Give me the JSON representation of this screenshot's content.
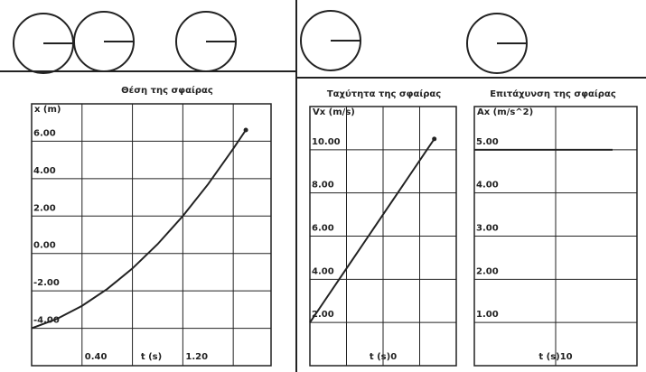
{
  "chart_data": [
    {
      "type": "line",
      "title": "Θέση της σφαίρας",
      "ylabel": "x (m)",
      "xlabel": "t (s)",
      "xlim": [
        0,
        1.9
      ],
      "ylim": [
        -6,
        8
      ],
      "xticks": [
        {
          "value": 0.4,
          "label": "0.40"
        },
        {
          "value": 0.8,
          "label": null
        },
        {
          "value": 1.2,
          "label": "1.20"
        },
        {
          "value": 1.6,
          "label": null
        }
      ],
      "yticks": [
        {
          "value": -4,
          "label": "-4.00"
        },
        {
          "value": -2,
          "label": "-2.00"
        },
        {
          "value": 0,
          "label": "0.00"
        },
        {
          "value": 2,
          "label": "2.00"
        },
        {
          "value": 4,
          "label": "4.00"
        },
        {
          "value": 6,
          "label": "6.00"
        }
      ],
      "grid": true,
      "end_marker": true,
      "x": [
        0,
        0.2,
        0.4,
        0.6,
        0.8,
        1.0,
        1.2,
        1.4,
        1.6,
        1.7
      ],
      "series": [
        {
          "color": "#222222",
          "values": [
            -4,
            -3.5,
            -2.8,
            -1.9,
            -0.8,
            0.5,
            2.0,
            3.7,
            5.6,
            6.6
          ]
        }
      ]
    },
    {
      "type": "line",
      "title": "Ταχύτητα της σφαίρας",
      "ylabel": "Vx (m/s)",
      "xlabel": "t (s)0",
      "xlim": [
        0,
        2.0
      ],
      "ylim": [
        0,
        12
      ],
      "xticks": [
        {
          "value": 0.5,
          "label": null
        },
        {
          "value": 1.0,
          "label": null
        },
        {
          "value": 1.5,
          "label": null
        }
      ],
      "yticks": [
        {
          "value": 2,
          "label": "2.00"
        },
        {
          "value": 4,
          "label": "4.00"
        },
        {
          "value": 6,
          "label": "6.00"
        },
        {
          "value": 8,
          "label": "8.00"
        },
        {
          "value": 10,
          "label": "10.00"
        }
      ],
      "grid": true,
      "end_marker": true,
      "x": [
        0,
        0.2,
        0.4,
        0.6,
        0.8,
        1.0,
        1.2,
        1.4,
        1.6,
        1.7
      ],
      "series": [
        {
          "color": "#222222",
          "values": [
            2,
            3,
            4,
            5,
            6,
            7,
            8,
            9,
            10,
            10.5
          ]
        }
      ]
    },
    {
      "type": "line",
      "title": "Επιτάχυνση της σφαίρας",
      "ylabel": "Ax (m/s^2)",
      "xlabel": "t (s)10",
      "xlim": [
        0,
        2.0
      ],
      "ylim": [
        0,
        6
      ],
      "xticks": [
        {
          "value": 1.0,
          "label": null
        }
      ],
      "yticks": [
        {
          "value": 1,
          "label": "1.00"
        },
        {
          "value": 2,
          "label": "2.00"
        },
        {
          "value": 3,
          "label": "3.00"
        },
        {
          "value": 4,
          "label": "4.00"
        },
        {
          "value": 5,
          "label": "5.00"
        }
      ],
      "grid": true,
      "end_marker": false,
      "x": [
        0,
        0.2,
        0.4,
        0.6,
        0.8,
        1.0,
        1.2,
        1.4,
        1.6,
        1.7
      ],
      "series": [
        {
          "color": "#222222",
          "values": [
            5,
            5,
            5,
            5,
            5,
            5,
            5,
            5,
            5,
            5
          ]
        }
      ]
    }
  ]
}
